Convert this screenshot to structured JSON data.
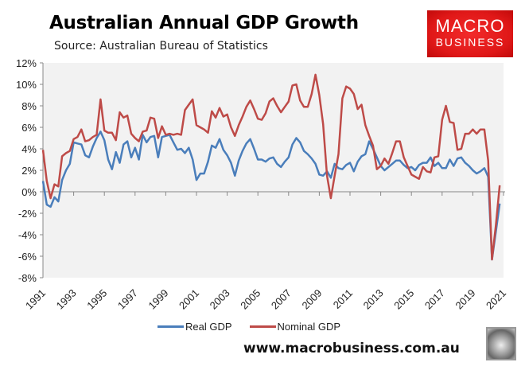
{
  "header": {
    "title": "Australian Annual GDP Growth",
    "subtitle": "Source: Australian Bureau of Statistics"
  },
  "logo": {
    "line1": "MACRO",
    "line2": "BUSINESS",
    "color": "#e01818"
  },
  "footer": {
    "url": "www.macrobusiness.com.au",
    "badge_icon": "wolf-icon"
  },
  "chart_data": {
    "type": "line",
    "title": "",
    "xlabel": "",
    "ylabel": "",
    "ylim": [
      -8,
      12
    ],
    "xlim": [
      1991,
      2021
    ],
    "yticks": [
      "-8%",
      "-6%",
      "-4%",
      "-2%",
      "0%",
      "2%",
      "4%",
      "6%",
      "8%",
      "10%",
      "12%"
    ],
    "ytick_values": [
      -8,
      -6,
      -4,
      -2,
      0,
      2,
      4,
      6,
      8,
      10,
      12
    ],
    "xticks": [
      "1991",
      "1993",
      "1995",
      "1997",
      "1999",
      "2001",
      "2003",
      "2005",
      "2007",
      "2009",
      "2011",
      "2013",
      "2015",
      "2017",
      "2019",
      "2021"
    ],
    "grid": false,
    "legend": "bottom",
    "background": "#f2f2f2",
    "x": [
      1991,
      1991.25,
      1991.5,
      1991.75,
      1992,
      1992.25,
      1992.5,
      1992.75,
      1993,
      1993.25,
      1993.5,
      1993.75,
      1994,
      1994.25,
      1994.5,
      1994.75,
      1995,
      1995.25,
      1995.5,
      1995.75,
      1996,
      1996.25,
      1996.5,
      1996.75,
      1997,
      1997.25,
      1997.5,
      1997.75,
      1998,
      1998.25,
      1998.5,
      1998.75,
      1999,
      1999.25,
      1999.5,
      1999.75,
      2000,
      2000.25,
      2000.5,
      2000.75,
      2001,
      2001.25,
      2001.5,
      2001.75,
      2002,
      2002.25,
      2002.5,
      2002.75,
      2003,
      2003.25,
      2003.5,
      2003.75,
      2004,
      2004.25,
      2004.5,
      2004.75,
      2005,
      2005.25,
      2005.5,
      2005.75,
      2006,
      2006.25,
      2006.5,
      2006.75,
      2007,
      2007.25,
      2007.5,
      2007.75,
      2008,
      2008.25,
      2008.5,
      2008.75,
      2009,
      2009.25,
      2009.5,
      2009.75,
      2010,
      2010.25,
      2010.5,
      2010.75,
      2011,
      2011.25,
      2011.5,
      2011.75,
      2012,
      2012.25,
      2012.5,
      2012.75,
      2013,
      2013.25,
      2013.5,
      2013.75,
      2014,
      2014.25,
      2014.5,
      2014.75,
      2015,
      2015.25,
      2015.5,
      2015.75,
      2016,
      2016.25,
      2016.5,
      2016.75,
      2017,
      2017.25,
      2017.5,
      2017.75,
      2018,
      2018.25,
      2018.5,
      2018.75,
      2019,
      2019.25,
      2019.5,
      2019.75,
      2020,
      2020.25,
      2020.5,
      2020.75
    ],
    "series": [
      {
        "name": "Real GDP",
        "color": "#4a7ebb",
        "values": [
          1.0,
          -1.2,
          -1.4,
          -0.5,
          -0.9,
          1.1,
          2.0,
          2.6,
          4.6,
          4.5,
          4.4,
          3.4,
          3.2,
          4.2,
          5.0,
          5.6,
          4.8,
          3.0,
          2.1,
          3.7,
          2.7,
          4.4,
          4.7,
          3.2,
          4.1,
          3.0,
          5.3,
          4.6,
          5.1,
          5.2,
          3.2,
          5.1,
          5.2,
          5.3,
          4.6,
          3.9,
          4.0,
          3.6,
          4.1,
          3.0,
          1.1,
          1.7,
          1.7,
          2.8,
          4.3,
          4.1,
          4.9,
          3.9,
          3.4,
          2.7,
          1.5,
          2.9,
          3.8,
          4.5,
          4.9,
          4.0,
          3.0,
          3.0,
          2.8,
          3.1,
          3.2,
          2.6,
          2.3,
          2.8,
          3.2,
          4.4,
          5.0,
          4.6,
          3.8,
          3.5,
          3.1,
          2.6,
          1.6,
          1.5,
          1.9,
          1.3,
          2.6,
          2.2,
          2.1,
          2.5,
          2.7,
          1.9,
          2.8,
          3.3,
          3.5,
          4.7,
          4.0,
          3.2,
          2.4,
          2.0,
          2.3,
          2.6,
          2.9,
          2.9,
          2.5,
          2.2,
          2.3,
          2.0,
          2.5,
          2.7,
          2.7,
          3.2,
          2.4,
          2.7,
          2.2,
          2.2,
          3.0,
          2.4,
          3.1,
          3.2,
          2.7,
          2.4,
          2.0,
          1.7,
          1.9,
          2.2,
          1.4,
          -6.3,
          -3.7,
          -1.1
        ]
      },
      {
        "name": "Nominal GDP",
        "color": "#be4b48",
        "values": [
          3.9,
          1.0,
          -0.6,
          0.7,
          0.5,
          3.3,
          3.6,
          3.8,
          4.9,
          5.1,
          5.8,
          4.7,
          4.8,
          5.1,
          5.3,
          8.6,
          5.7,
          5.5,
          5.5,
          4.8,
          7.4,
          6.9,
          7.1,
          5.4,
          5.0,
          4.7,
          5.6,
          5.7,
          6.9,
          6.8,
          5.0,
          6.1,
          5.3,
          5.4,
          5.3,
          5.4,
          5.3,
          7.6,
          8.1,
          8.6,
          6.2,
          6.0,
          5.8,
          5.5,
          7.5,
          6.9,
          7.8,
          7.0,
          7.2,
          6.0,
          5.2,
          6.2,
          7.0,
          7.9,
          8.5,
          7.7,
          6.8,
          6.7,
          7.3,
          8.4,
          8.7,
          8.0,
          7.4,
          7.9,
          8.4,
          9.9,
          10.0,
          8.5,
          7.9,
          7.9,
          9.1,
          10.9,
          9.0,
          6.3,
          1.5,
          -0.6,
          1.5,
          3.5,
          8.7,
          9.8,
          9.6,
          9.1,
          7.7,
          8.1,
          6.2,
          5.2,
          4.3,
          2.1,
          2.4,
          3.1,
          2.6,
          3.6,
          4.7,
          4.7,
          3.2,
          2.4,
          1.6,
          1.4,
          1.2,
          2.3,
          1.9,
          1.8,
          3.2,
          3.3,
          6.7,
          8.0,
          6.5,
          6.4,
          3.9,
          4.0,
          5.4,
          5.4,
          5.8,
          5.4,
          5.8,
          5.8,
          2.9,
          -6.3,
          -3.1,
          0.6
        ]
      }
    ]
  }
}
